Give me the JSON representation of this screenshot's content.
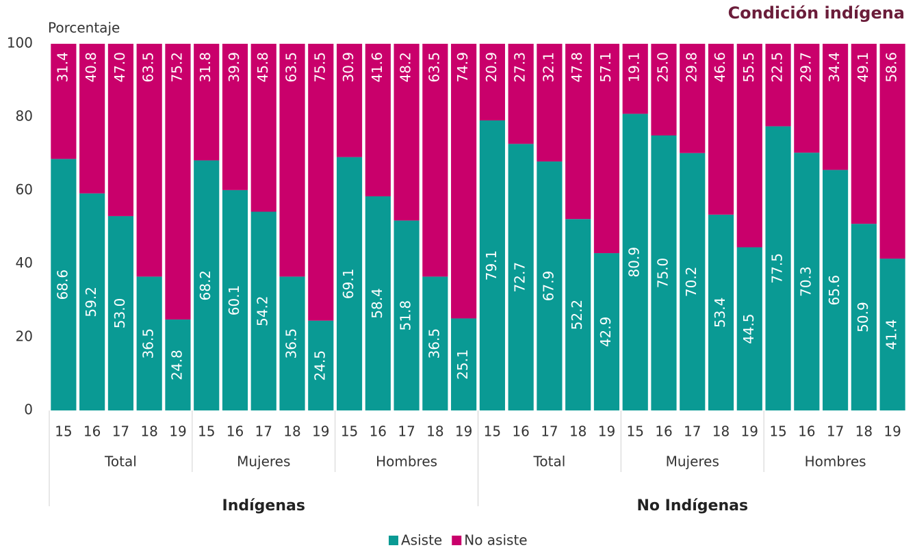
{
  "chart_data": {
    "type": "stacked_bar",
    "title": "Condición indígena",
    "y_label": "Porcentaje",
    "categories": [
      "15",
      "16",
      "17",
      "18",
      "19",
      "15",
      "16",
      "17",
      "18",
      "19",
      "15",
      "16",
      "17",
      "18",
      "19",
      "15",
      "16",
      "17",
      "18",
      "19",
      "15",
      "16",
      "17",
      "18",
      "19",
      "15",
      "16",
      "17",
      "18",
      "19"
    ],
    "groups": [
      "Total",
      "Mujeres",
      "Hombres",
      "Total",
      "Mujeres",
      "Hombres"
    ],
    "supergroups": [
      "Indígenas",
      "No Indígenas"
    ],
    "ylim": [
      0,
      100
    ],
    "yticks": [
      0,
      20,
      40,
      60,
      80,
      100
    ],
    "grid": false,
    "legend": "bottom",
    "series": [
      {
        "name": "Asiste",
        "color": "#0a9a94",
        "values": [
          68.6,
          59.2,
          53.0,
          36.5,
          24.8,
          68.2,
          60.1,
          54.2,
          36.5,
          24.5,
          69.1,
          58.4,
          51.8,
          36.5,
          25.1,
          79.1,
          72.7,
          67.9,
          52.2,
          42.9,
          80.9,
          75.0,
          70.2,
          53.4,
          44.5,
          77.5,
          70.3,
          65.6,
          50.9,
          41.4
        ],
        "value_labels": [
          "68.6",
          "59.2",
          "53.0",
          "36.5",
          "24.8",
          "68.2",
          "60.1",
          "54.2",
          "36.5",
          "24.5",
          "69.1",
          "58.4",
          "51.8",
          "36.5",
          "25.1",
          "79.1",
          "72.7",
          "67.9",
          "52.2",
          "42.9",
          "80.9",
          "75.0",
          "70.2",
          "53.4",
          "44.5",
          "77.5",
          "70.3",
          "65.6",
          "50.9",
          "41.4"
        ]
      },
      {
        "name": "No asiste",
        "color": "#c9006b",
        "values": [
          31.4,
          40.8,
          47.0,
          63.5,
          75.2,
          31.8,
          39.9,
          45.8,
          63.5,
          75.5,
          30.9,
          41.6,
          48.2,
          63.5,
          74.9,
          20.9,
          27.3,
          32.1,
          47.8,
          57.1,
          19.1,
          25.0,
          29.8,
          46.6,
          55.5,
          22.5,
          29.7,
          34.4,
          49.1,
          58.6
        ],
        "value_labels": [
          "31.4",
          "40.8",
          "47.0",
          "63.5",
          "75.2",
          "31.8",
          "39.9",
          "45.8",
          "63.5",
          "75.5",
          "30.9",
          "41.6",
          "48.2",
          "63.5",
          "74.9",
          "20.9",
          "27.3",
          "32.1",
          "47.8",
          "57.1",
          "19.1",
          "25.0",
          "29.8",
          "46.6",
          "55.5",
          "22.5",
          "29.7",
          "34.4",
          "49.1",
          "58.6"
        ]
      }
    ]
  }
}
